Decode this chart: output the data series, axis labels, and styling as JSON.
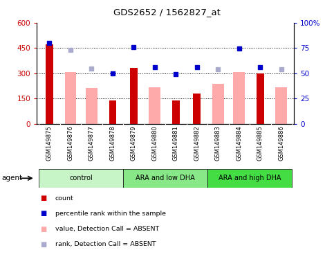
{
  "title": "GDS2652 / 1562827_at",
  "samples": [
    "GSM149875",
    "GSM149876",
    "GSM149877",
    "GSM149878",
    "GSM149879",
    "GSM149880",
    "GSM149881",
    "GSM149882",
    "GSM149883",
    "GSM149884",
    "GSM149885",
    "GSM149886"
  ],
  "groups": [
    {
      "label": "control",
      "color": "#c8f5c8",
      "start": 0,
      "end": 4
    },
    {
      "label": "ARA and low DHA",
      "color": "#88e888",
      "start": 4,
      "end": 8
    },
    {
      "label": "ARA and high DHA",
      "color": "#44dd44",
      "start": 8,
      "end": 12
    }
  ],
  "dark_red_bars": [
    470,
    0,
    0,
    140,
    330,
    0,
    140,
    180,
    0,
    0,
    300,
    0
  ],
  "pink_bars": [
    0,
    305,
    210,
    0,
    0,
    215,
    0,
    0,
    235,
    305,
    0,
    215
  ],
  "blue_squares": [
    480,
    0,
    0,
    300,
    455,
    335,
    295,
    335,
    0,
    445,
    335,
    0
  ],
  "lavender_squares": [
    0,
    438,
    328,
    0,
    0,
    0,
    0,
    0,
    325,
    0,
    0,
    325
  ],
  "ylim_left": [
    0,
    600
  ],
  "ylim_right": [
    0,
    100
  ],
  "yticks_left": [
    0,
    150,
    300,
    450,
    600
  ],
  "yticks_right": [
    0,
    25,
    50,
    75,
    100
  ],
  "ytick_labels_left": [
    "0",
    "150",
    "300",
    "450",
    "600"
  ],
  "ytick_labels_right": [
    "0",
    "25",
    "50",
    "75",
    "100%"
  ],
  "hlines": [
    150,
    300,
    450
  ],
  "legend_items": [
    {
      "label": "count",
      "color": "#cc0000"
    },
    {
      "label": "percentile rank within the sample",
      "color": "#0000cc"
    },
    {
      "label": "value, Detection Call = ABSENT",
      "color": "#ffaaaa"
    },
    {
      "label": "rank, Detection Call = ABSENT",
      "color": "#aaaacc"
    }
  ],
  "agent_label": "agent",
  "background_color": "#ffffff",
  "xticklabel_bg": "#c8c8c8",
  "plot_bg": "#ffffff"
}
